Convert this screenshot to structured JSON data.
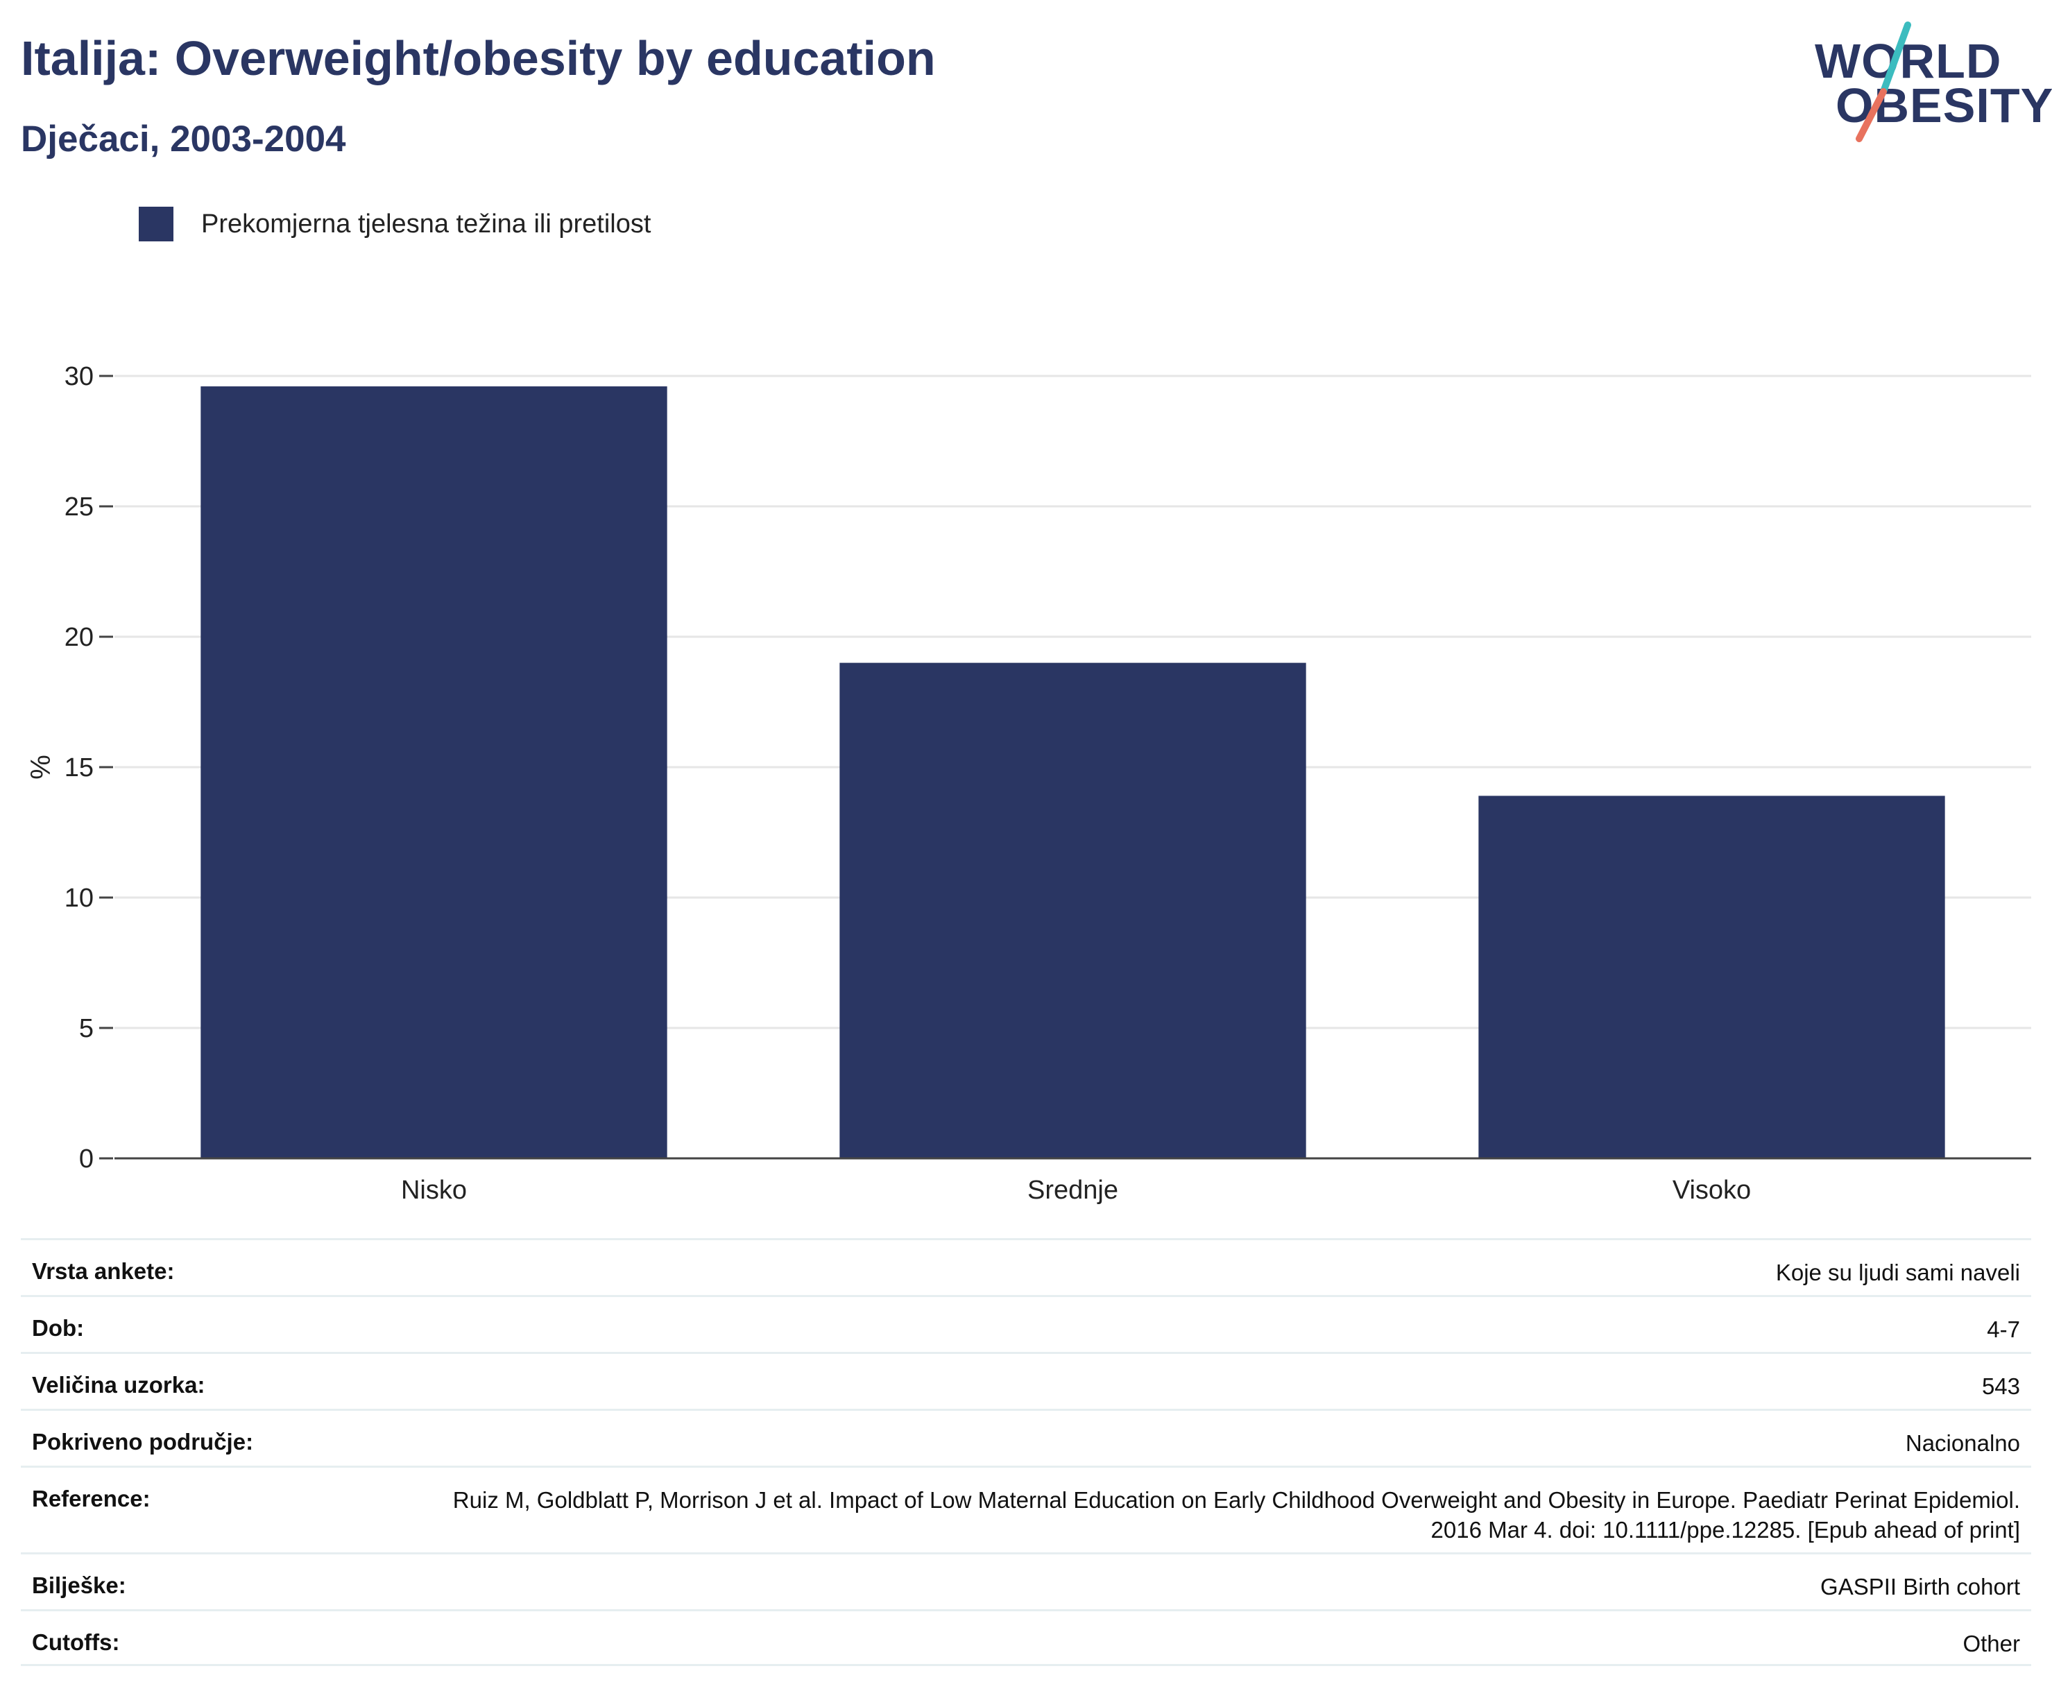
{
  "header": {
    "title": "Italija: Overweight/obesity by education",
    "subtitle": "Dječaci, 2003-2004"
  },
  "logo": {
    "line1": "WORLD",
    "line2": "OBESITY",
    "colors": {
      "text": "#2a3663",
      "slash_top": "#3cbcbf",
      "slash_bottom": "#e8725e"
    }
  },
  "legend": {
    "label": "Prekomjerna tjelesna težina ili pretilost"
  },
  "chart_data": {
    "type": "bar",
    "categories": [
      "Nisko",
      "Srednje",
      "Visoko"
    ],
    "series": [
      {
        "name": "Prekomjerna tjelesna težina ili pretilost",
        "values": [
          29.6,
          19.0,
          13.9
        ],
        "color": "#2a3663"
      }
    ],
    "ylabel": "%",
    "ylim": [
      0,
      30
    ],
    "yticks": [
      0,
      5,
      10,
      15,
      20,
      25,
      30
    ],
    "grid": true
  },
  "info": [
    {
      "label": "Vrsta ankete:",
      "value": "Koje su ljudi sami naveli"
    },
    {
      "label": "Dob:",
      "value": "4-7"
    },
    {
      "label": "Veličina uzorka:",
      "value": "543"
    },
    {
      "label": "Pokriveno područje:",
      "value": "Nacionalno"
    },
    {
      "label": "Reference:",
      "value": "Ruiz M, Goldblatt P, Morrison J et al. Impact of Low Maternal Education on Early Childhood Overweight and Obesity in Europe. Paediatr Perinat Epidemiol. 2016 Mar 4. doi: 10.1111/ppe.12285. [Epub ahead of print]"
    },
    {
      "label": "Bilješke:",
      "value": "GASPII Birth cohort"
    },
    {
      "label": "Cutoffs:",
      "value": "Other"
    }
  ]
}
